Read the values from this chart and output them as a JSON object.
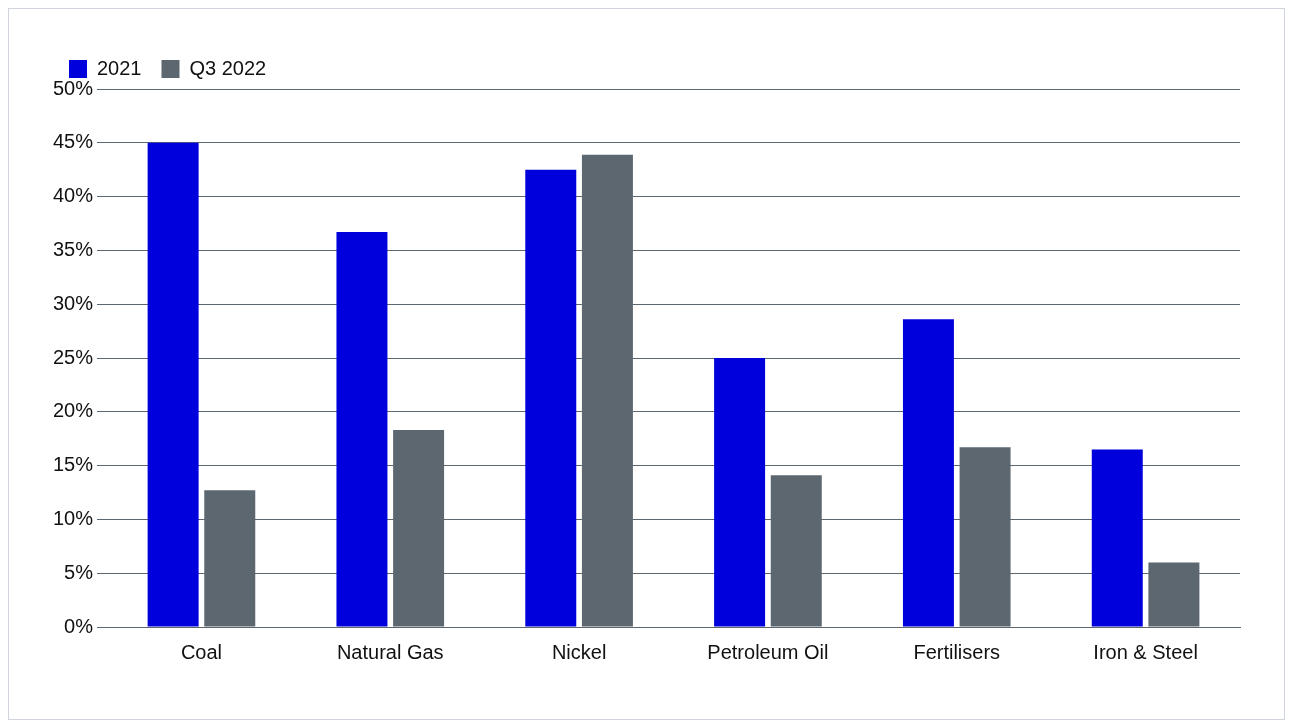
{
  "chart_data": {
    "type": "bar",
    "categories": [
      "Coal",
      "Natural Gas",
      "Nickel",
      "Petroleum Oil",
      "Fertilisers",
      "Iron & Steel"
    ],
    "series": [
      {
        "name": "2021",
        "color": "#0000dd",
        "values": [
          45.0,
          36.7,
          42.5,
          25.0,
          28.6,
          16.5
        ]
      },
      {
        "name": "Q3 2022",
        "color": "#5c6770",
        "values": [
          12.7,
          18.3,
          43.9,
          14.1,
          16.7,
          6.0
        ]
      }
    ],
    "ylim": [
      0,
      50
    ],
    "yticks": [
      {
        "value": 0,
        "label": "0%"
      },
      {
        "value": 5,
        "label": "5%"
      },
      {
        "value": 10,
        "label": "10%"
      },
      {
        "value": 15,
        "label": "15%"
      },
      {
        "value": 20,
        "label": "20%"
      },
      {
        "value": 25,
        "label": "25%"
      },
      {
        "value": 30,
        "label": "30%"
      },
      {
        "value": 35,
        "label": "35%"
      },
      {
        "value": 40,
        "label": "40%"
      },
      {
        "value": 45,
        "label": "45%"
      },
      {
        "value": 50,
        "label": "50%"
      }
    ],
    "grid": "y",
    "legend": "top left"
  }
}
